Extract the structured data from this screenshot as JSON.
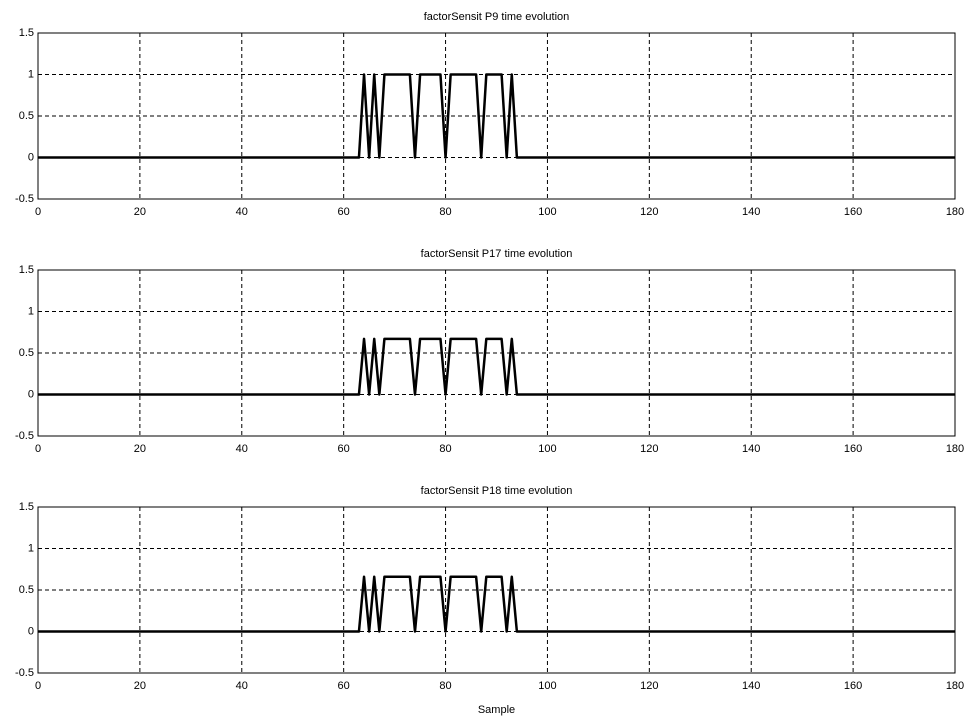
{
  "chart_data": [
    {
      "type": "line",
      "title": "factorSensit P9 time evolution",
      "x": [
        0,
        63,
        64,
        65,
        66,
        67,
        68,
        73,
        74,
        75,
        79,
        80,
        81,
        86,
        87,
        88,
        91,
        92,
        93,
        94,
        180
      ],
      "values": [
        0,
        0,
        1,
        0,
        1,
        0,
        1,
        1,
        0,
        1,
        1,
        0,
        1,
        1,
        0,
        1,
        1,
        0,
        1,
        0,
        0
      ],
      "color": "#000000",
      "xlim": [
        0,
        180
      ],
      "xticks": [
        0,
        20,
        40,
        60,
        80,
        100,
        120,
        140,
        160,
        180
      ],
      "ylim": [
        -0.5,
        1.5
      ],
      "yticks": [
        -0.5,
        0,
        0.5,
        1,
        1.5
      ],
      "grid": true
    },
    {
      "type": "line",
      "title": "factorSensit P17 time evolution",
      "x": [
        0,
        63,
        64,
        65,
        66,
        67,
        68,
        73,
        74,
        75,
        79,
        80,
        81,
        86,
        87,
        88,
        91,
        92,
        93,
        94,
        180
      ],
      "values": [
        0,
        0,
        0.67,
        0,
        0.67,
        0,
        0.67,
        0.67,
        0,
        0.67,
        0.67,
        0,
        0.67,
        0.67,
        0,
        0.67,
        0.67,
        0,
        0.67,
        0,
        0
      ],
      "color": "#000000",
      "xlim": [
        0,
        180
      ],
      "xticks": [
        0,
        20,
        40,
        60,
        80,
        100,
        120,
        140,
        160,
        180
      ],
      "ylim": [
        -0.5,
        1.5
      ],
      "yticks": [
        -0.5,
        0,
        0.5,
        1,
        1.5
      ],
      "grid": true
    },
    {
      "type": "line",
      "title": "factorSensit P18 time evolution",
      "xlabel": "Sample",
      "x": [
        0,
        63,
        64,
        65,
        66,
        67,
        68,
        73,
        74,
        75,
        79,
        80,
        81,
        86,
        87,
        88,
        91,
        92,
        93,
        94,
        180
      ],
      "values": [
        0,
        0,
        0.66,
        0,
        0.66,
        0,
        0.66,
        0.66,
        0,
        0.66,
        0.66,
        0,
        0.66,
        0.66,
        0,
        0.66,
        0.66,
        0,
        0.66,
        0,
        0
      ],
      "color": "#000000",
      "xlim": [
        0,
        180
      ],
      "xticks": [
        0,
        20,
        40,
        60,
        80,
        100,
        120,
        140,
        160,
        180
      ],
      "ylim": [
        -0.5,
        1.5
      ],
      "yticks": [
        -0.5,
        0,
        0.5,
        1,
        1.5
      ],
      "grid": true
    }
  ]
}
